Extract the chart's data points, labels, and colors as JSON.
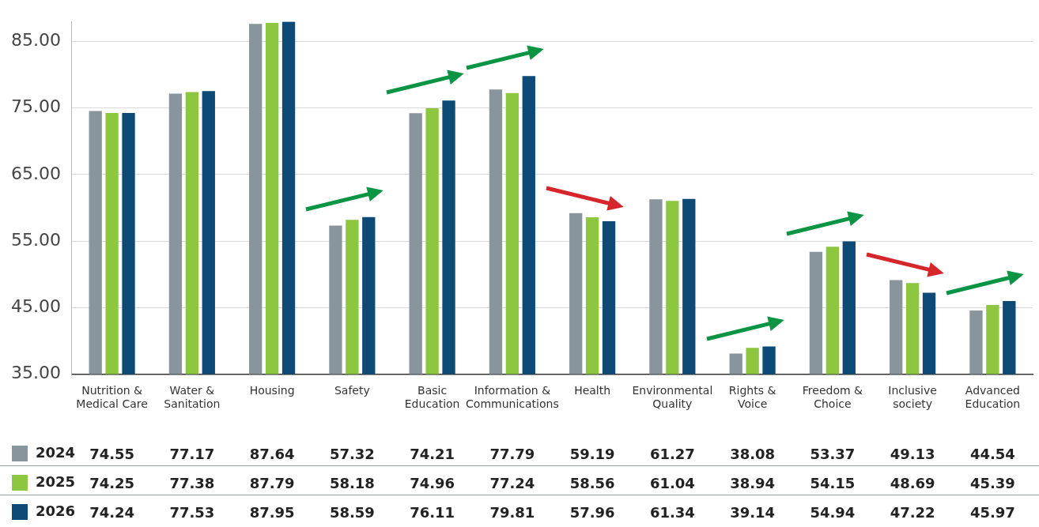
{
  "chart_data": {
    "type": "bar",
    "categories": [
      "Nutrition & Medical Care",
      "Water & Sanitation",
      "Housing",
      "Safety",
      "Basic Education",
      "Information & Communications",
      "Health",
      "Environmental Quality",
      "Rights & Voice",
      "Freedom & Choice",
      "Inclusive society",
      "Advanced Education"
    ],
    "series": [
      {
        "name": "2024",
        "color": "#89959d",
        "values": [
          74.55,
          77.17,
          87.64,
          57.32,
          74.21,
          77.79,
          59.19,
          61.27,
          38.08,
          53.37,
          49.13,
          44.54
        ]
      },
      {
        "name": "2025",
        "color": "#8dc63f",
        "values": [
          74.25,
          77.38,
          87.79,
          58.18,
          74.96,
          77.24,
          58.56,
          61.04,
          38.94,
          54.15,
          48.69,
          45.39
        ]
      },
      {
        "name": "2026",
        "color": "#0d4a76",
        "values": [
          74.24,
          77.53,
          87.95,
          58.59,
          76.11,
          79.81,
          57.96,
          61.34,
          39.14,
          54.94,
          47.22,
          45.97
        ]
      }
    ],
    "ylim": [
      35,
      88
    ],
    "yticks": [
      {
        "value": 35,
        "label": "35.00"
      },
      {
        "value": 45,
        "label": "45.00"
      },
      {
        "value": 55,
        "label": "55.00"
      },
      {
        "value": 65,
        "label": "65.00"
      },
      {
        "value": 75,
        "label": "75.00"
      },
      {
        "value": 85,
        "label": "85.00"
      }
    ],
    "grid": "y",
    "legend": "bottom",
    "data_labels": true
  }
}
